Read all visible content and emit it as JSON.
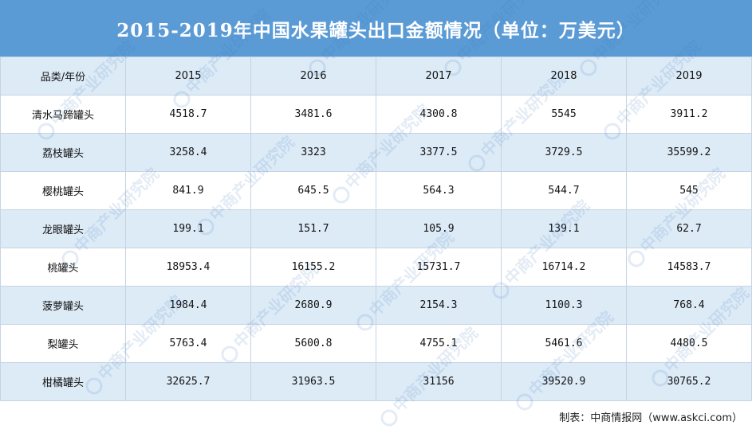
{
  "title": "2015-2019年中国水果罐头出口金额情况（单位：万美元）",
  "table": {
    "header": [
      "品类/年份",
      "2015",
      "2016",
      "2017",
      "2018",
      "2019"
    ],
    "rows": [
      [
        "清水马蹄罐头",
        "4518.7",
        "3481.6",
        "4300.8",
        "5545",
        "3911.2"
      ],
      [
        "荔枝罐头",
        "3258.4",
        "3323",
        "3377.5",
        "3729.5",
        "35599.2"
      ],
      [
        "樱桃罐头",
        "841.9",
        "645.5",
        "564.3",
        "544.7",
        "545"
      ],
      [
        "龙眼罐头",
        "199.1",
        "151.7",
        "105.9",
        "139.1",
        "62.7"
      ],
      [
        "桃罐头",
        "18953.4",
        "16155.2",
        "15731.7",
        "16714.2",
        "14583.7"
      ],
      [
        "菠萝罐头",
        "1984.4",
        "2680.9",
        "2154.3",
        "1100.3",
        "768.4"
      ],
      [
        "梨罐头",
        "5763.4",
        "5600.8",
        "4755.1",
        "5461.6",
        "4480.5"
      ],
      [
        "柑橘罐头",
        "32625.7",
        "31963.5",
        "31156",
        "39520.9",
        "30765.2"
      ]
    ]
  },
  "footer": "制表：中商情报网（www.askci.com）",
  "watermark": "中商产业研究院",
  "colors": {
    "header": "#5b9bd5",
    "alt_row": "#ddebf7",
    "grid": "#c6d3e3"
  }
}
